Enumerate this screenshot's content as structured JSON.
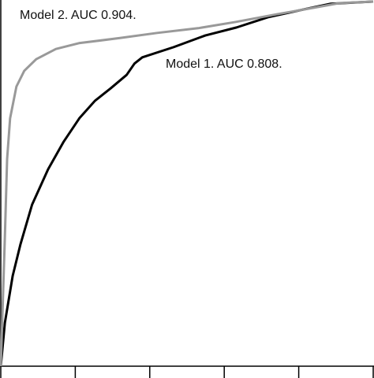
{
  "chart_data": {
    "type": "line",
    "series": [
      {
        "name": "Model 1. AUC 0.808.",
        "color": "#000000",
        "x": [
          0,
          0.011,
          0.032,
          0.053,
          0.084,
          0.127,
          0.169,
          0.211,
          0.253,
          0.295,
          0.338,
          0.359,
          0.38,
          0.464,
          0.549,
          0.633,
          0.717,
          0.802,
          0.886,
          1
        ],
        "values": [
          0,
          0.119,
          0.248,
          0.335,
          0.443,
          0.54,
          0.616,
          0.68,
          0.728,
          0.762,
          0.799,
          0.83,
          0.847,
          0.875,
          0.907,
          0.929,
          0.957,
          0.976,
          0.994,
          1
        ]
      },
      {
        "name": "Model 2. AUC 0.904.",
        "color": "#999999",
        "x": [
          0,
          0.011,
          0.017,
          0.025,
          0.042,
          0.063,
          0.095,
          0.148,
          0.21,
          0.32,
          0.42,
          0.53,
          0.63,
          0.74,
          0.84,
          0.91,
          1
        ],
        "values": [
          0,
          0.356,
          0.568,
          0.68,
          0.767,
          0.81,
          0.842,
          0.87,
          0.886,
          0.9,
          0.914,
          0.927,
          0.944,
          0.965,
          0.983,
          0.996,
          1
        ]
      }
    ],
    "xlim": [
      0,
      1
    ],
    "ylim": [
      0,
      1
    ],
    "xticks": [
      0,
      0.2,
      0.4,
      0.6,
      0.8,
      1
    ]
  }
}
